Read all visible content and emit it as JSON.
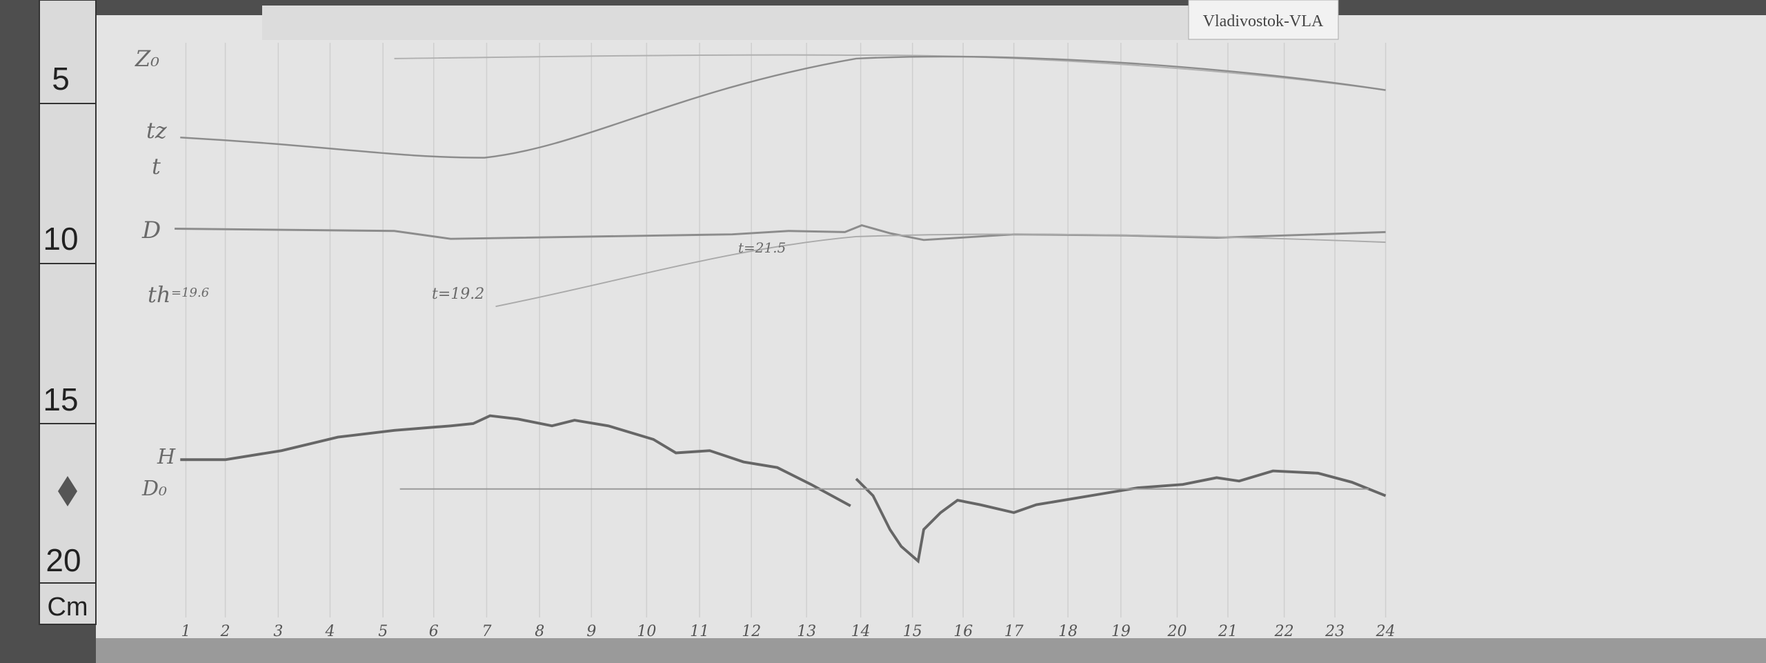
{
  "station": "Vladivostok-VLA",
  "ruler": {
    "labels": [
      "5",
      "10",
      "15",
      "20"
    ],
    "unit": "Cm"
  },
  "trace_labels": [
    "Z₀",
    "tz",
    "t",
    "D",
    "th",
    "H",
    "D₀"
  ],
  "annotations": [
    "t=21.5",
    "t=19.2",
    "=19.6"
  ],
  "hours": [
    "1",
    "2",
    "3",
    "4",
    "5",
    "6",
    "7",
    "8",
    "9",
    "10",
    "11",
    "12",
    "13",
    "14",
    "15",
    "16",
    "17",
    "18",
    "19",
    "20",
    "21",
    "22",
    "23",
    "24"
  ]
}
